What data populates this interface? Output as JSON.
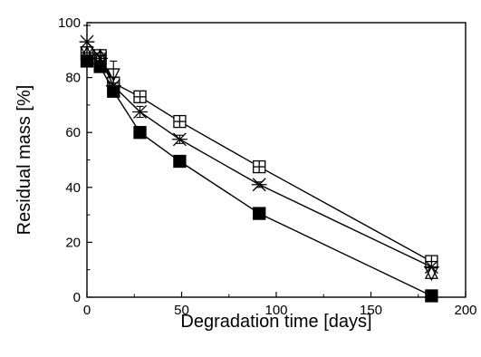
{
  "chart_data": {
    "type": "scatter",
    "title": "",
    "xlabel": "Degradation time [days]",
    "ylabel": "Residual mass [%]",
    "xlim": [
      0,
      200
    ],
    "ylim": [
      0,
      100
    ],
    "x_ticks": [
      0,
      50,
      100,
      150,
      200
    ],
    "y_ticks": [
      0,
      20,
      40,
      60,
      80,
      100
    ],
    "x_tick_labels": [
      "0",
      "50",
      "100",
      "150",
      "200"
    ],
    "y_tick_labels": [
      "0",
      "20",
      "40",
      "60",
      "80",
      "100"
    ],
    "grid": false,
    "legend": "none",
    "series": [
      {
        "marker": "open-square-crosshair",
        "lines": true,
        "x": [
          0,
          7,
          14,
          28,
          49,
          91,
          182
        ],
        "y": [
          89,
          88,
          78,
          73,
          64,
          47.5,
          13
        ],
        "err": [
          0,
          0,
          0,
          1.5,
          1,
          1,
          0
        ]
      },
      {
        "marker": "asterisk",
        "lines": true,
        "x": [
          0,
          7,
          14,
          28,
          49,
          91,
          182
        ],
        "y": [
          93,
          87,
          77,
          67.5,
          57.5,
          41,
          11
        ],
        "err": [
          6,
          2,
          3,
          2,
          1.5,
          1,
          0
        ]
      },
      {
        "marker": "filled-square",
        "lines": true,
        "x": [
          0,
          7,
          14,
          28,
          49,
          91,
          182
        ],
        "y": [
          86,
          84,
          75,
          60,
          49.5,
          30.5,
          0.5
        ],
        "err": [
          0,
          1,
          1.5,
          1,
          1,
          1,
          0
        ]
      },
      {
        "marker": "open-triangle-down",
        "lines": false,
        "x": [
          0,
          7,
          14,
          182
        ],
        "y": [
          89,
          86,
          81,
          8.5
        ],
        "err": [
          0,
          0,
          5,
          0
        ]
      },
      {
        "marker": "open-triangle-up",
        "lines": false,
        "x": [
          0,
          7,
          182
        ],
        "y": [
          89,
          88,
          9
        ],
        "err": [
          0,
          0,
          0
        ]
      }
    ]
  }
}
